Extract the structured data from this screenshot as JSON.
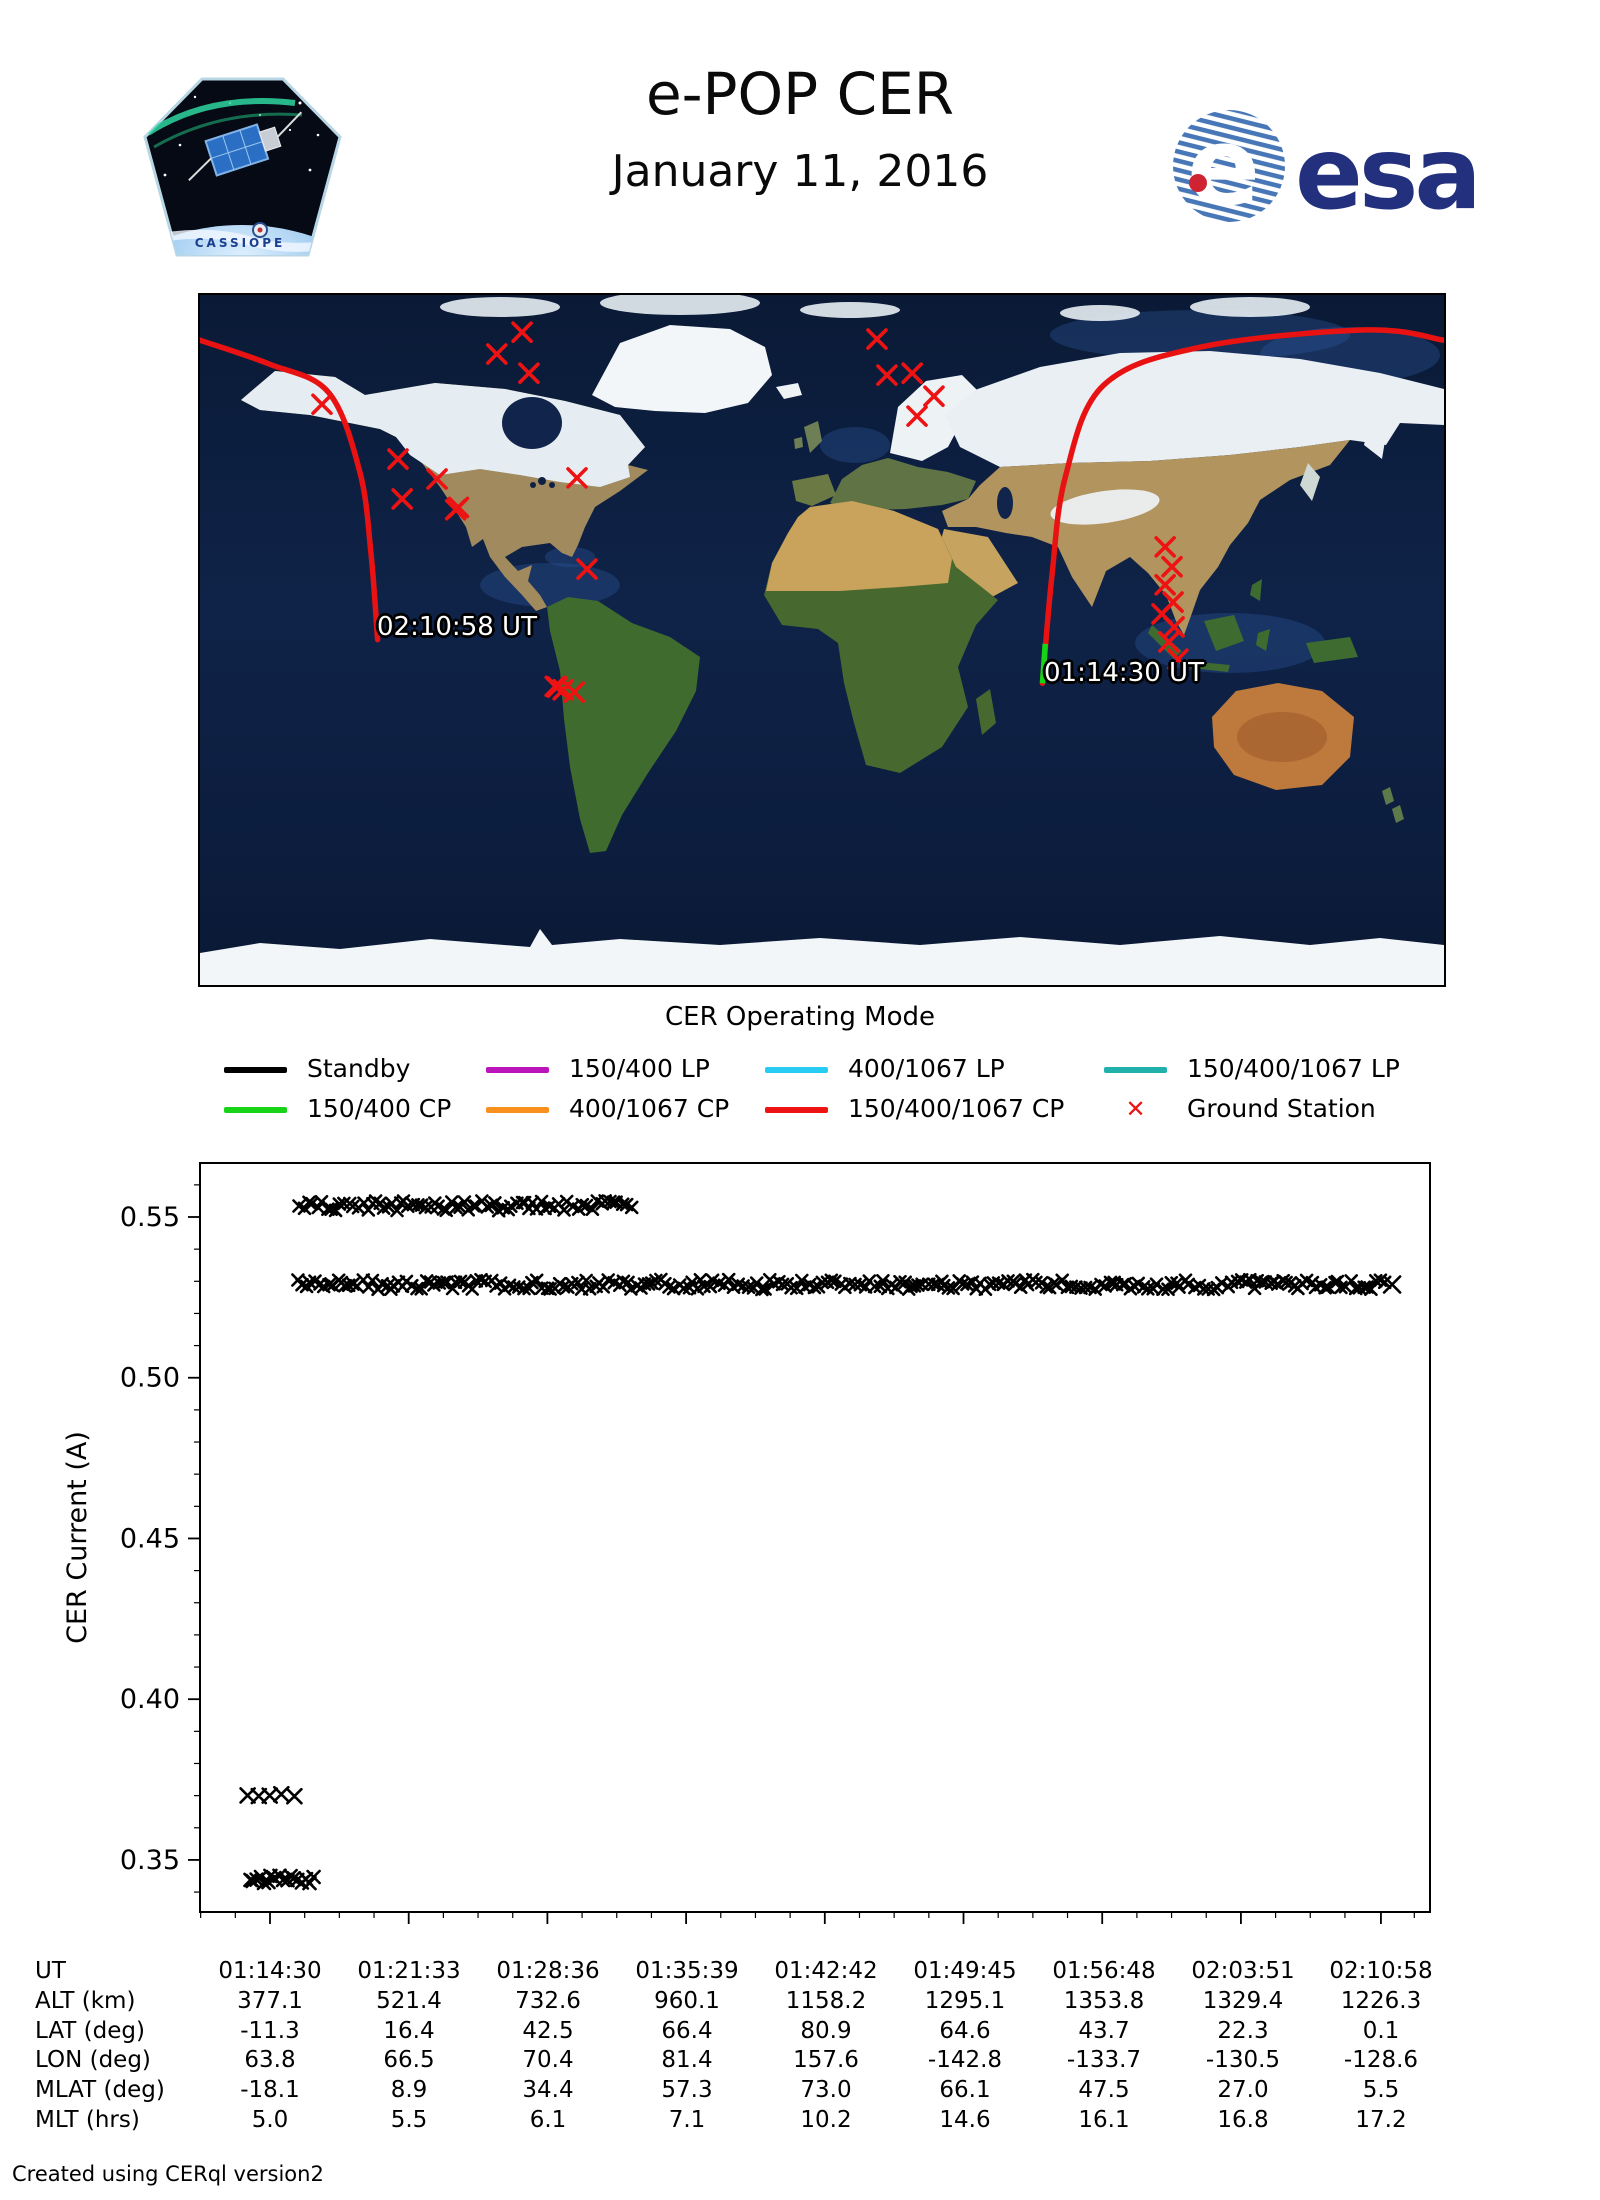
{
  "header": {
    "title": "e-POP CER",
    "date": "January 11, 2016",
    "patch_text": "CASSIOPE",
    "esa_text": "esa"
  },
  "map": {
    "start_label": "01:14:30 UT",
    "end_label": "02:10:58 UT",
    "track_color": "#e81212",
    "track_start_color": "#17d417",
    "station_color": "#ee1313",
    "track_ascending": [
      [
        63.8,
        -11.3
      ],
      [
        66.5,
        16.4
      ],
      [
        70.4,
        42.5
      ],
      [
        81.4,
        66.4
      ],
      [
        110.0,
        76.5
      ],
      [
        157.6,
        80.9
      ],
      [
        180.0,
        78.2
      ]
    ],
    "track_descending": [
      [
        -180.0,
        78.2
      ],
      [
        -160.0,
        72.0
      ],
      [
        -142.8,
        64.6
      ],
      [
        -133.7,
        43.7
      ],
      [
        -130.5,
        22.3
      ],
      [
        -128.6,
        0.1
      ]
    ],
    "track_start_segment": [
      [
        63.8,
        -11.3
      ],
      [
        64.6,
        -1.0
      ]
    ],
    "ground_stations": [
      [
        -144.7,
        61.5
      ],
      [
        -122.7,
        47.2
      ],
      [
        -111.4,
        42.0
      ],
      [
        -121.5,
        36.8
      ],
      [
        -106.0,
        34.0
      ],
      [
        -105.2,
        34.6
      ],
      [
        -70.9,
        42.3
      ],
      [
        -68.0,
        18.5
      ],
      [
        -77.2,
        -12.1
      ],
      [
        -76.6,
        -12.3
      ],
      [
        -74.9,
        -13.0
      ],
      [
        -71.7,
        -13.6
      ],
      [
        -86.8,
        80.3
      ],
      [
        -94.1,
        74.6
      ],
      [
        -84.8,
        69.6
      ],
      [
        15.9,
        78.5
      ],
      [
        18.8,
        69.1
      ],
      [
        26.1,
        69.6
      ],
      [
        32.4,
        63.6
      ],
      [
        27.5,
        58.4
      ],
      [
        99.3,
        24.3
      ],
      [
        101.3,
        19.1
      ],
      [
        99.3,
        14.4
      ],
      [
        101.6,
        9.9
      ],
      [
        98.4,
        6.8
      ],
      [
        101.9,
        3.4
      ],
      [
        100.4,
        -0.5
      ],
      [
        103.0,
        -5.0
      ]
    ]
  },
  "legend": {
    "title": "CER Operating Mode",
    "items": [
      {
        "label": "Standby",
        "color": "#000000",
        "marker": "line"
      },
      {
        "label": "150/400 LP",
        "color": "#bb14bb",
        "marker": "line"
      },
      {
        "label": "400/1067 LP",
        "color": "#27ccf2",
        "marker": "line"
      },
      {
        "label": "150/400/1067 LP",
        "color": "#20b2aa",
        "marker": "line"
      },
      {
        "label": "150/400 CP",
        "color": "#17d417",
        "marker": "line"
      },
      {
        "label": "400/1067 CP",
        "color": "#f9901e",
        "marker": "line"
      },
      {
        "label": "150/400/1067 CP",
        "color": "#ee1313",
        "marker": "line"
      },
      {
        "label": "Ground Station",
        "color": "#ee1313",
        "marker": "x"
      }
    ]
  },
  "chart_data": {
    "type": "scatter",
    "marker": "x",
    "marker_color": "#000000",
    "ylabel": "CER Current (A)",
    "ylim": [
      0.3338,
      0.5668
    ],
    "yticks": [
      0.35,
      0.4,
      0.45,
      0.5,
      0.55
    ],
    "xticks": [
      "01:14:30",
      "01:21:33",
      "01:28:36",
      "01:35:39",
      "01:42:42",
      "01:49:45",
      "01:56:48",
      "02:03:51",
      "02:10:58"
    ],
    "grid": false,
    "legend_position": "above-plot",
    "series": [
      {
        "name": "current-high",
        "y": 0.5535,
        "start": "01:15:58",
        "end": "01:33:00",
        "style": "dense-band",
        "end_marker": false
      },
      {
        "name": "current-mid",
        "y": 0.529,
        "start": "01:15:58",
        "end": "02:11:20",
        "style": "dense-band",
        "end_marker": true
      },
      {
        "name": "current-low-upper",
        "y": 0.37,
        "start": "01:13:20",
        "end": "01:16:10",
        "style": "sparse-cluster",
        "end_marker": false
      },
      {
        "name": "current-low-lower",
        "y": 0.344,
        "start": "01:13:30",
        "end": "01:16:45",
        "style": "dense-cluster",
        "end_marker": false
      }
    ]
  },
  "table": {
    "rows": [
      {
        "label": "UT",
        "values": [
          "01:14:30",
          "01:21:33",
          "01:28:36",
          "01:35:39",
          "01:42:42",
          "01:49:45",
          "01:56:48",
          "02:03:51",
          "02:10:58"
        ]
      },
      {
        "label": "ALT (km)",
        "values": [
          "377.1",
          "521.4",
          "732.6",
          "960.1",
          "1158.2",
          "1295.1",
          "1353.8",
          "1329.4",
          "1226.3"
        ]
      },
      {
        "label": "LAT (deg)",
        "values": [
          "-11.3",
          "16.4",
          "42.5",
          "66.4",
          "80.9",
          "64.6",
          "43.7",
          "22.3",
          "0.1"
        ]
      },
      {
        "label": "LON (deg)",
        "values": [
          "63.8",
          "66.5",
          "70.4",
          "81.4",
          "157.6",
          "-142.8",
          "-133.7",
          "-130.5",
          "-128.6"
        ]
      },
      {
        "label": "MLAT (deg)",
        "values": [
          "-18.1",
          "8.9",
          "34.4",
          "57.3",
          "73.0",
          "66.1",
          "47.5",
          "27.0",
          "5.5"
        ]
      },
      {
        "label": "MLT (hrs)",
        "values": [
          "5.0",
          "5.5",
          "6.1",
          "7.1",
          "10.2",
          "14.6",
          "16.1",
          "16.8",
          "17.2"
        ]
      }
    ]
  },
  "footer": "Created using CERql version2"
}
